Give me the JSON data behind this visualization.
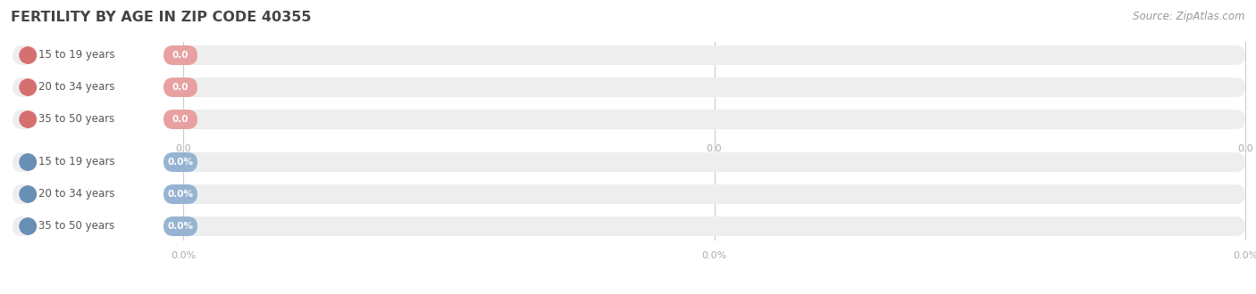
{
  "title": "FERTILITY BY AGE IN ZIP CODE 40355",
  "source": "Source: ZipAtlas.com",
  "background_color": "#ffffff",
  "top_section": {
    "categories": [
      "15 to 19 years",
      "20 to 34 years",
      "35 to 50 years"
    ],
    "values": [
      0.0,
      0.0,
      0.0
    ],
    "bar_color": "#e8a0a0",
    "circle_color": "#d47070",
    "tick_values": [
      "0.0",
      "0.0",
      "0.0"
    ]
  },
  "bottom_section": {
    "categories": [
      "15 to 19 years",
      "20 to 34 years",
      "35 to 50 years"
    ],
    "values": [
      0.0,
      0.0,
      0.0
    ],
    "bar_color": "#96b4d2",
    "circle_color": "#6a8fb5",
    "tick_values": [
      "0.0%",
      "0.0%",
      "0.0%"
    ]
  },
  "title_color": "#444444",
  "title_fontsize": 11.5,
  "source_color": "#999999",
  "source_fontsize": 8.5,
  "category_fontsize": 8.5,
  "value_fontsize": 7.5,
  "tick_fontsize": 8,
  "tick_color": "#aaaaaa",
  "bar_bg_color": "#eeeeee",
  "label_pill_color": "#ffffff",
  "grid_color": "#cccccc"
}
